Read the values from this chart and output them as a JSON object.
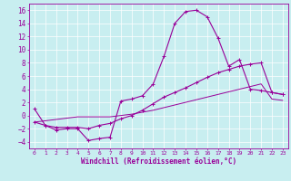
{
  "x": [
    0,
    1,
    2,
    3,
    4,
    5,
    6,
    7,
    8,
    9,
    10,
    11,
    12,
    13,
    14,
    15,
    16,
    17,
    18,
    19,
    20,
    21,
    22,
    23
  ],
  "line1": [
    1.0,
    -1.5,
    -2.2,
    -2.0,
    -2.0,
    -3.8,
    -3.5,
    -3.3,
    2.2,
    2.5,
    3.0,
    4.8,
    9.0,
    14.0,
    15.8,
    16.0,
    15.0,
    11.8,
    7.5,
    8.5,
    4.0,
    3.8,
    3.5,
    3.2
  ],
  "line2_x": [
    0,
    1,
    2,
    3,
    4,
    5,
    6,
    7,
    8,
    9,
    10,
    11,
    12,
    13,
    14,
    15,
    16,
    17,
    18,
    19,
    20,
    21,
    22,
    23
  ],
  "line2": [
    -1.0,
    -1.5,
    -1.8,
    -1.8,
    -1.8,
    -2.0,
    -1.5,
    -1.2,
    -0.5,
    0.0,
    0.8,
    1.8,
    2.8,
    3.5,
    4.2,
    5.0,
    5.8,
    6.5,
    7.0,
    7.5,
    7.8,
    8.0,
    3.5,
    3.2
  ],
  "line3": [
    -1.0,
    -0.8,
    -0.6,
    -0.4,
    -0.2,
    -0.2,
    -0.2,
    -0.2,
    0.0,
    0.2,
    0.5,
    0.8,
    1.2,
    1.6,
    2.0,
    2.4,
    2.8,
    3.2,
    3.6,
    4.0,
    4.4,
    4.8,
    2.5,
    2.3
  ],
  "line_color": "#990099",
  "bg_color": "#c8eef0",
  "grid_color": "#ffffff",
  "xlabel": "Windchill (Refroidissement éolien,°C)",
  "ylim": [
    -5.0,
    17.0
  ],
  "xlim": [
    -0.5,
    23.5
  ],
  "yticks": [
    -4,
    -2,
    0,
    2,
    4,
    6,
    8,
    10,
    12,
    14,
    16
  ],
  "xticks": [
    0,
    1,
    2,
    3,
    4,
    5,
    6,
    7,
    8,
    9,
    10,
    11,
    12,
    13,
    14,
    15,
    16,
    17,
    18,
    19,
    20,
    21,
    22,
    23
  ]
}
